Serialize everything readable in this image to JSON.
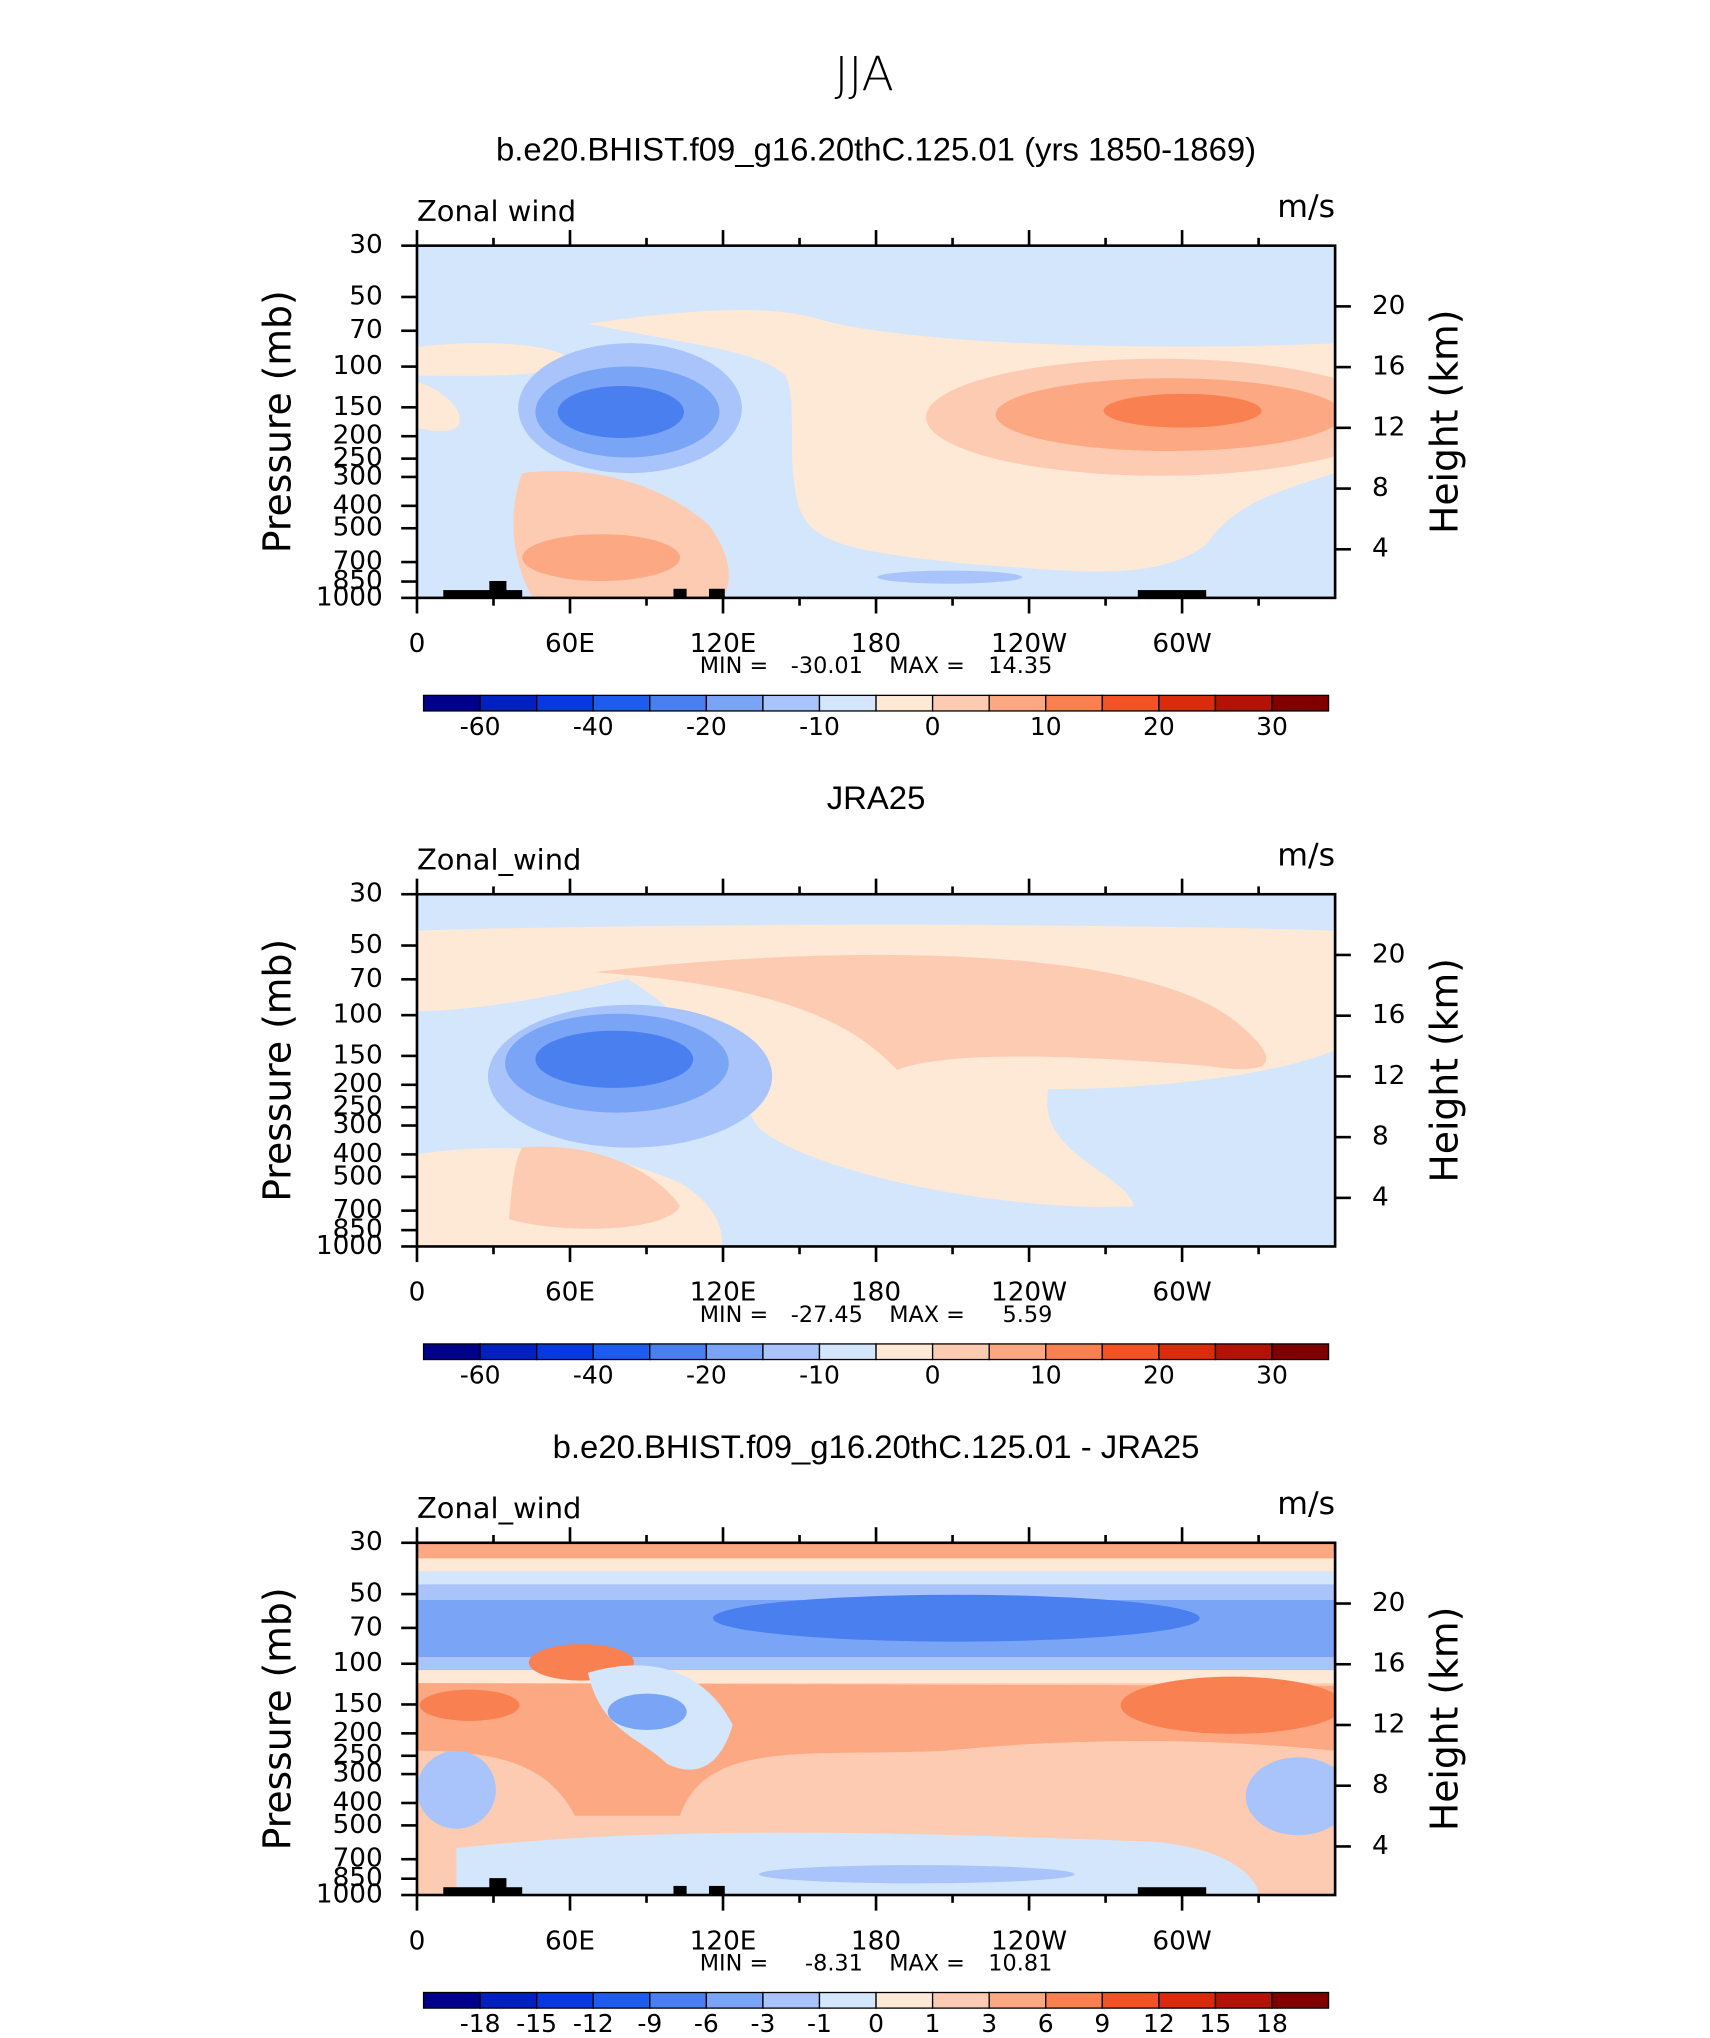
{
  "title": "JJA",
  "chart_data": [
    {
      "type": "contour",
      "title": "b.e20.BHIST.f09_g16.20thC.125.01 (yrs 1850-1869)",
      "label_left": "Zonal wind",
      "label_right": "m/s",
      "ylabel": "Pressure (mb)",
      "y2label": "Height (km)",
      "xlim": [
        0,
        360
      ],
      "xticks": [
        0,
        {
          "value": 60,
          "label": "60E"
        },
        {
          "value": 120,
          "label": "120E"
        },
        180,
        {
          "value": 240,
          "label": "120W"
        },
        {
          "value": 300,
          "label": "60W"
        }
      ],
      "xminor": [
        30,
        90,
        150,
        210,
        270,
        330
      ],
      "log_scale": true,
      "ylim": [
        1000,
        30
      ],
      "yticks": [
        30,
        50,
        70,
        100,
        150,
        200,
        250,
        300,
        400,
        500,
        700,
        850,
        1000
      ],
      "y2lim": [
        0.8,
        24
      ],
      "y2ticks": [
        4,
        8,
        12,
        16,
        20
      ],
      "min_label": "MIN =",
      "min": -30.01,
      "max_label": "MAX =",
      "max": 14.35,
      "colorbar": {
        "colors": [
          "#00008b",
          "#0020c0",
          "#0838e0",
          "#1e5cf0",
          "#4a7ff0",
          "#7aa4f5",
          "#a8c4fa",
          "#d4e6fc",
          "#fee8d6",
          "#fdcbb2",
          "#fca882",
          "#f98050",
          "#f25224",
          "#da2c0c",
          "#b41206",
          "#800000"
        ],
        "labels": [
          -60,
          -40,
          -20,
          -10,
          0,
          10,
          20,
          30
        ]
      }
    },
    {
      "type": "contour",
      "title": "JRA25",
      "label_left": "Zonal_wind",
      "label_right": "m/s",
      "ylabel": "Pressure (mb)",
      "y2label": "Height (km)",
      "xlim": [
        0,
        360
      ],
      "xticks": [
        0,
        {
          "value": 60,
          "label": "60E"
        },
        {
          "value": 120,
          "label": "120E"
        },
        180,
        {
          "value": 240,
          "label": "120W"
        },
        {
          "value": 300,
          "label": "60W"
        }
      ],
      "xminor": [
        30,
        90,
        150,
        210,
        270,
        330
      ],
      "log_scale": true,
      "ylim": [
        1000,
        30
      ],
      "yticks": [
        30,
        50,
        70,
        100,
        150,
        200,
        250,
        300,
        400,
        500,
        700,
        850,
        1000
      ],
      "y2lim": [
        0.8,
        24
      ],
      "y2ticks": [
        4,
        8,
        12,
        16,
        20
      ],
      "min_label": "MIN =",
      "min": -27.45,
      "max_label": "MAX =",
      "max": 5.59,
      "colorbar": {
        "colors": [
          "#00008b",
          "#0020c0",
          "#0838e0",
          "#1e5cf0",
          "#4a7ff0",
          "#7aa4f5",
          "#a8c4fa",
          "#d4e6fc",
          "#fee8d6",
          "#fdcbb2",
          "#fca882",
          "#f98050",
          "#f25224",
          "#da2c0c",
          "#b41206",
          "#800000"
        ],
        "labels": [
          -60,
          -40,
          -20,
          -10,
          0,
          10,
          20,
          30
        ]
      }
    },
    {
      "type": "contour",
      "title": "b.e20.BHIST.f09_g16.20thC.125.01 - JRA25",
      "label_left": "Zonal_wind",
      "label_right": "m/s",
      "ylabel": "Pressure (mb)",
      "y2label": "Height (km)",
      "xlim": [
        0,
        360
      ],
      "xticks": [
        0,
        {
          "value": 60,
          "label": "60E"
        },
        {
          "value": 120,
          "label": "120E"
        },
        180,
        {
          "value": 240,
          "label": "120W"
        },
        {
          "value": 300,
          "label": "60W"
        }
      ],
      "xminor": [
        30,
        90,
        150,
        210,
        270,
        330
      ],
      "log_scale": true,
      "ylim": [
        1000,
        30
      ],
      "yticks": [
        30,
        50,
        70,
        100,
        150,
        200,
        250,
        300,
        400,
        500,
        700,
        850,
        1000
      ],
      "y2lim": [
        0.8,
        24
      ],
      "y2ticks": [
        4,
        8,
        12,
        16,
        20
      ],
      "min_label": "MIN =",
      "min": -8.31,
      "max_label": "MAX =",
      "max": 10.81,
      "colorbar": {
        "colors": [
          "#00008b",
          "#0020c0",
          "#0838e0",
          "#1e5cf0",
          "#4a7ff0",
          "#7aa4f5",
          "#a8c4fa",
          "#d4e6fc",
          "#fee8d6",
          "#fdcbb2",
          "#fca882",
          "#f98050",
          "#f25224",
          "#da2c0c",
          "#b41206",
          "#800000"
        ],
        "labels": [
          -18,
          -15,
          -12,
          -9,
          -6,
          -3,
          -1,
          0,
          1,
          3,
          6,
          9,
          12,
          15,
          18
        ]
      }
    }
  ]
}
